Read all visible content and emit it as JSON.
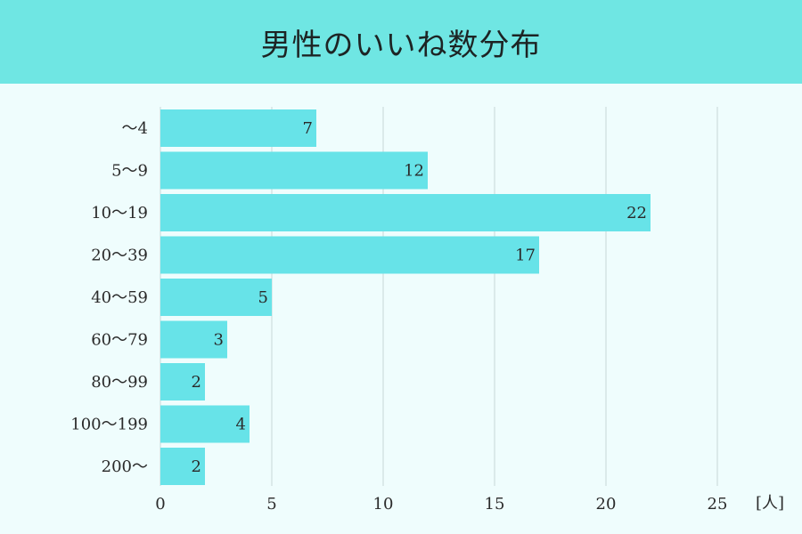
{
  "header": {
    "title": "男性のいいね数分布"
  },
  "colors": {
    "bar": "#67e3e8",
    "header_bg": "#6fe6e3",
    "plot_bg": "#effdfd",
    "gridline": "#c7d7d8"
  },
  "chart_data": {
    "type": "bar",
    "orientation": "horizontal",
    "title": "男性のいいね数分布",
    "categories": [
      "〜4",
      "5〜9",
      "10〜19",
      "20〜39",
      "40〜59",
      "60〜79",
      "80〜99",
      "100〜199",
      "200〜"
    ],
    "values": [
      7,
      12,
      22,
      17,
      5,
      3,
      2,
      4,
      2
    ],
    "value_labels": [
      "7",
      "12",
      "22",
      "17",
      "5",
      "3",
      "2",
      "4",
      "2"
    ],
    "xlabel": "[人]",
    "ylabel": "",
    "xlim": [
      0,
      28
    ],
    "xticks": [
      0,
      5,
      10,
      15,
      20,
      25
    ],
    "xtick_labels": [
      "0",
      "5",
      "10",
      "15",
      "20",
      "25"
    ],
    "grid": true,
    "legend": "none"
  }
}
